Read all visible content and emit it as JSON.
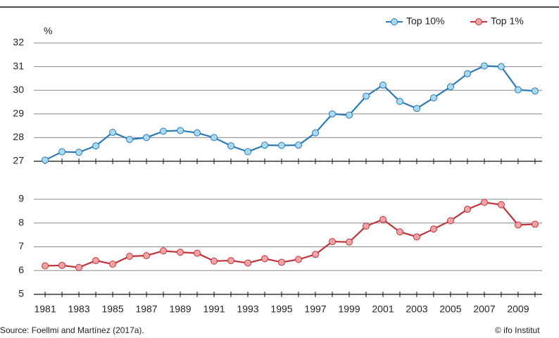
{
  "chart_data": [
    {
      "type": "line",
      "ylabel": "%",
      "x": [
        1981,
        1982,
        1983,
        1984,
        1985,
        1986,
        1987,
        1988,
        1989,
        1990,
        1991,
        1992,
        1993,
        1994,
        1995,
        1996,
        1997,
        1998,
        1999,
        2000,
        2001,
        2002,
        2003,
        2004,
        2005,
        2006,
        2007,
        2008,
        2009,
        2010
      ],
      "series": [
        {
          "name": "Top 10%",
          "color": "#2a7ab8",
          "marker_color": "#a9daf2",
          "values": [
            27.05,
            27.4,
            27.38,
            27.65,
            28.22,
            27.92,
            28.0,
            28.27,
            28.3,
            28.2,
            28.0,
            27.65,
            27.4,
            27.68,
            27.67,
            27.68,
            28.2,
            29.0,
            28.95,
            29.75,
            30.22,
            29.53,
            29.23,
            29.68,
            30.15,
            30.7,
            31.03,
            31.0,
            30.02,
            29.97
          ]
        }
      ],
      "xlim": [
        1980.33,
        2010.42
      ],
      "ylim": [
        27,
        32
      ],
      "yticks": [
        27,
        28,
        29,
        30,
        31,
        32
      ],
      "grid": true,
      "legend": "upper right"
    },
    {
      "type": "line",
      "x": [
        1981,
        1982,
        1983,
        1984,
        1985,
        1986,
        1987,
        1988,
        1989,
        1990,
        1991,
        1992,
        1993,
        1994,
        1995,
        1996,
        1997,
        1998,
        1999,
        2000,
        2001,
        2002,
        2003,
        2004,
        2005,
        2006,
        2007,
        2008,
        2009,
        2010
      ],
      "series": [
        {
          "name": "Top 1%",
          "color": "#c0333a",
          "marker_color": "#f3a3a6",
          "values": [
            6.2,
            6.22,
            6.13,
            6.42,
            6.27,
            6.6,
            6.63,
            6.83,
            6.77,
            6.73,
            6.4,
            6.42,
            6.32,
            6.5,
            6.35,
            6.47,
            6.68,
            7.22,
            7.2,
            7.87,
            8.15,
            7.63,
            7.42,
            7.75,
            8.1,
            8.58,
            8.87,
            8.77,
            7.92,
            7.95
          ]
        }
      ],
      "xlim": [
        1980.33,
        2010.42
      ],
      "ylim": [
        5,
        9
      ],
      "yticks": [
        5,
        6,
        7,
        8,
        9
      ],
      "xticks": [
        1981,
        1983,
        1985,
        1987,
        1989,
        1991,
        1993,
        1995,
        1997,
        1999,
        2001,
        2003,
        2005,
        2007,
        2009
      ],
      "grid": true
    }
  ],
  "source": "Source: Foellmi and Martínez (2017a).",
  "credit": "© ifo Institut"
}
